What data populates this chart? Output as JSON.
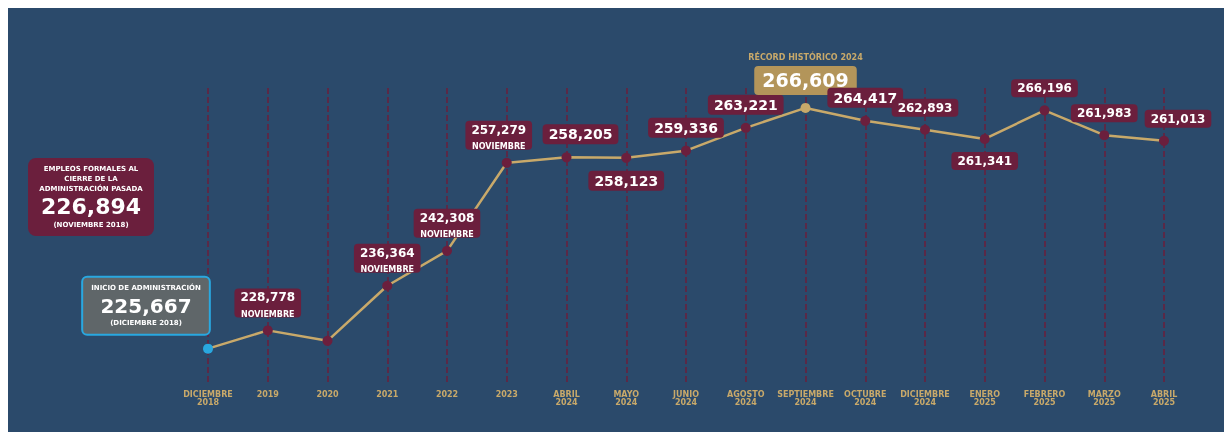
{
  "chart_data": {
    "type": "line",
    "categories": [
      "DICIEMBRE 2018",
      "2019",
      "2020",
      "2021",
      "2022",
      "2023",
      "ABRIL 2024",
      "MAYO 2024",
      "JUNIO 2024",
      "AGOSTO 2024",
      "SEPTIEMBRE 2024",
      "OCTUBRE 2024",
      "DICIEMBRE 2024",
      "ENERO 2025",
      "FEBRERO 2025",
      "MARZO 2025",
      "ABRIL 2025"
    ],
    "series": [
      {
        "color": "#c8a96a",
        "values": [
          225667,
          228778,
          227000,
          236364,
          242308,
          257279,
          258205,
          258123,
          259336,
          263221,
          266609,
          264417,
          262893,
          261341,
          266196,
          261983,
          261013
        ],
        "colors": [
          "#29a8e0",
          "#6b1f3d",
          "#6b1f3d",
          "#6b1f3d",
          "#6b1f3d",
          "#6b1f3d",
          "#6b1f3d",
          "#6b1f3d",
          "#6b1f3d",
          "#6b1f3d",
          "#c8a96a",
          "#6b1f3d",
          "#6b1f3d",
          "#6b1f3d",
          "#6b1f3d",
          "#6b1f3d",
          "#6b1f3d"
        ],
        "value_labels": [
          "225,667",
          "228,778",
          null,
          "236,364",
          "242,308",
          "257,279",
          "258,205",
          "258,123",
          "259,336",
          "263,221",
          "266,609",
          "264,417",
          "262,893",
          "261,341",
          "266,196",
          "261,983",
          "261,013"
        ]
      }
    ],
    "annotations": [
      "EMPLEOS FORMALES AL CIERRE DE LA ADMINISTRACIÓN PASADA",
      "226,894",
      "(NOVIEMBRE 2018)",
      "INICIO DE ADMINISTRACIÓN",
      "(DICIEMBRE 2018)",
      "RÉCORD HISTÓRICO 2024",
      {
        "text": "NOVIEMBRE",
        "x": "2019",
        "y": 228778
      },
      {
        "text": "NOVIEMBRE",
        "x": "2021",
        "y": 236364
      },
      {
        "text": "NOVIEMBRE",
        "x": "2022",
        "y": 242308
      },
      {
        "text": "NOVIEMBRE",
        "x": "2023",
        "y": 257279
      }
    ],
    "grid": "x",
    "marker": "circle",
    "line_style": "solid"
  }
}
